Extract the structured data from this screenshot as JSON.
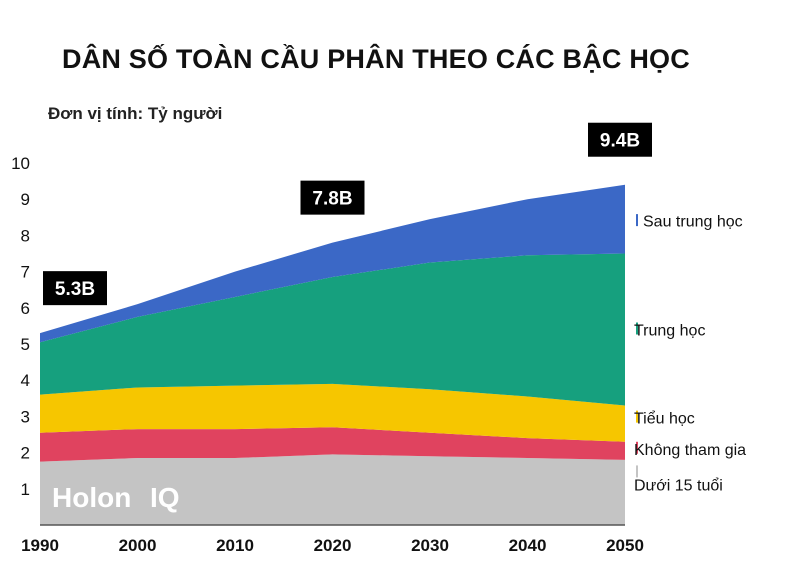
{
  "chart_data": {
    "type": "area",
    "stacked": true,
    "title": "DÂN SỐ TOÀN CẦU PHÂN THEO CÁC BẬC HỌC",
    "unit_label": "Đơn vị tính: Tỷ người",
    "x": [
      1990,
      2000,
      2010,
      2020,
      2030,
      2040,
      2050
    ],
    "xlim": [
      1990,
      2050
    ],
    "ylim": [
      0,
      10
    ],
    "yticks": [
      1,
      2,
      3,
      4,
      5,
      6,
      7,
      8,
      9,
      10
    ],
    "grid": false,
    "legend_position": "right",
    "series": [
      {
        "name": "Dưới 15 tuổi",
        "color": "#c4c4c4",
        "values": [
          1.75,
          1.85,
          1.85,
          1.95,
          1.9,
          1.85,
          1.8
        ]
      },
      {
        "name": "Không tham gia",
        "color": "#e0435f",
        "values": [
          0.8,
          0.8,
          0.8,
          0.75,
          0.65,
          0.55,
          0.5
        ]
      },
      {
        "name": "Tiểu học",
        "color": "#f6c600",
        "values": [
          1.05,
          1.15,
          1.2,
          1.2,
          1.2,
          1.15,
          1.0
        ]
      },
      {
        "name": "Trung học",
        "color": "#16a07e",
        "values": [
          1.45,
          1.95,
          2.45,
          2.95,
          3.5,
          3.9,
          4.2
        ]
      },
      {
        "name": "Sau trung học",
        "color": "#3b68c6",
        "values": [
          0.25,
          0.35,
          0.7,
          0.95,
          1.2,
          1.55,
          1.9
        ]
      }
    ],
    "annotations": [
      {
        "x": 1990,
        "label": "5.3B"
      },
      {
        "x": 2020,
        "label": "7.8B"
      },
      {
        "x": 2050,
        "label": "9.4B"
      }
    ],
    "watermark": {
      "brand": "Holon",
      "suffix": "IQ"
    }
  }
}
